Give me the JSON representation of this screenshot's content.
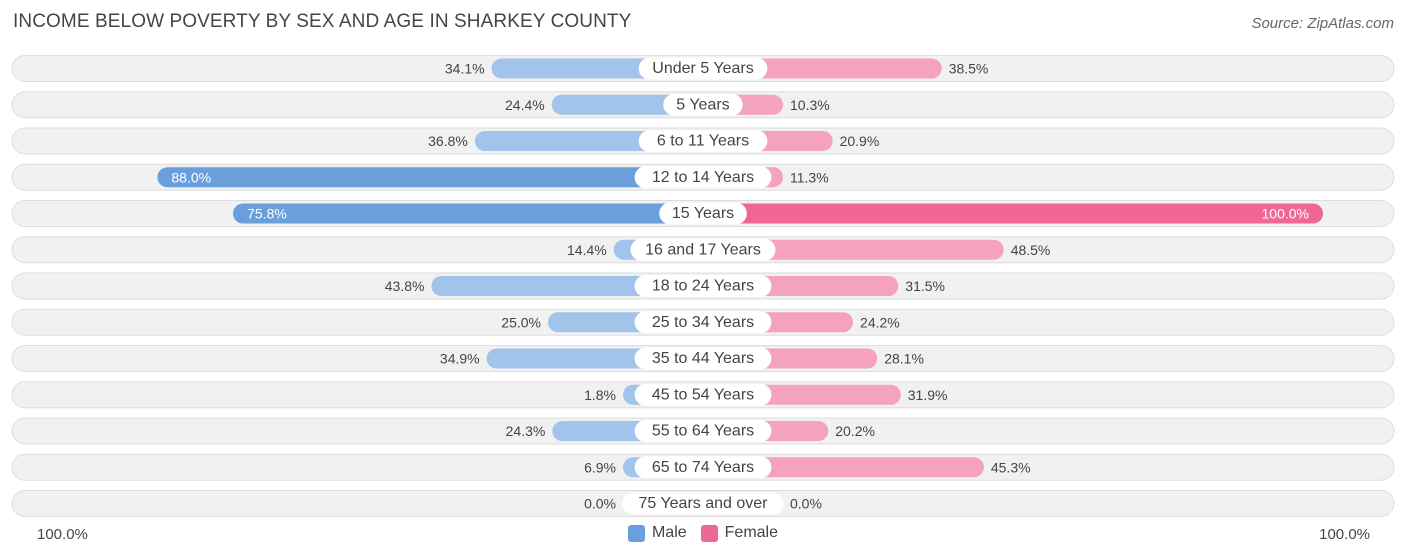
{
  "chart_data": {
    "type": "bar",
    "orientation": "horizontal-diverging",
    "title": "INCOME BELOW POVERTY BY SEX AND AGE IN SHARKEY COUNTY",
    "source": "Source: ZipAtlas.com",
    "categories": [
      "Under 5 Years",
      "5 Years",
      "6 to 11 Years",
      "12 to 14 Years",
      "15 Years",
      "16 and 17 Years",
      "18 to 24 Years",
      "25 to 34 Years",
      "35 to 44 Years",
      "45 to 54 Years",
      "55 to 64 Years",
      "65 to 74 Years",
      "75 Years and over"
    ],
    "series": [
      {
        "name": "Male",
        "values": [
          34.1,
          24.4,
          36.8,
          88.0,
          75.8,
          14.4,
          43.8,
          25.0,
          34.9,
          1.8,
          24.3,
          6.9,
          0.0
        ],
        "labels": [
          "34.1%",
          "24.4%",
          "36.8%",
          "88.0%",
          "75.8%",
          "14.4%",
          "43.8%",
          "25.0%",
          "34.9%",
          "1.8%",
          "24.3%",
          "6.9%",
          "0.0%"
        ]
      },
      {
        "name": "Female",
        "values": [
          38.5,
          10.3,
          20.9,
          11.3,
          100.0,
          48.5,
          31.5,
          24.2,
          28.1,
          31.9,
          20.2,
          45.3,
          0.0
        ],
        "labels": [
          "38.5%",
          "10.3%",
          "20.9%",
          "11.3%",
          "100.0%",
          "48.5%",
          "31.5%",
          "24.2%",
          "28.1%",
          "31.9%",
          "20.2%",
          "45.3%",
          "0.0%"
        ]
      }
    ],
    "xlim": [
      0,
      100
    ],
    "axis_left_label": "100.0%",
    "axis_right_label": "100.0%",
    "legend": [
      "Male",
      "Female"
    ],
    "legend_position": "bottom-center",
    "colors": {
      "male": "#a3c4ea",
      "male_strong": "#6a9fdb",
      "female": "#f5a2bd",
      "female_strong": "#f06793",
      "track": "#f1f1f1",
      "track_border": "#dddddd"
    }
  }
}
